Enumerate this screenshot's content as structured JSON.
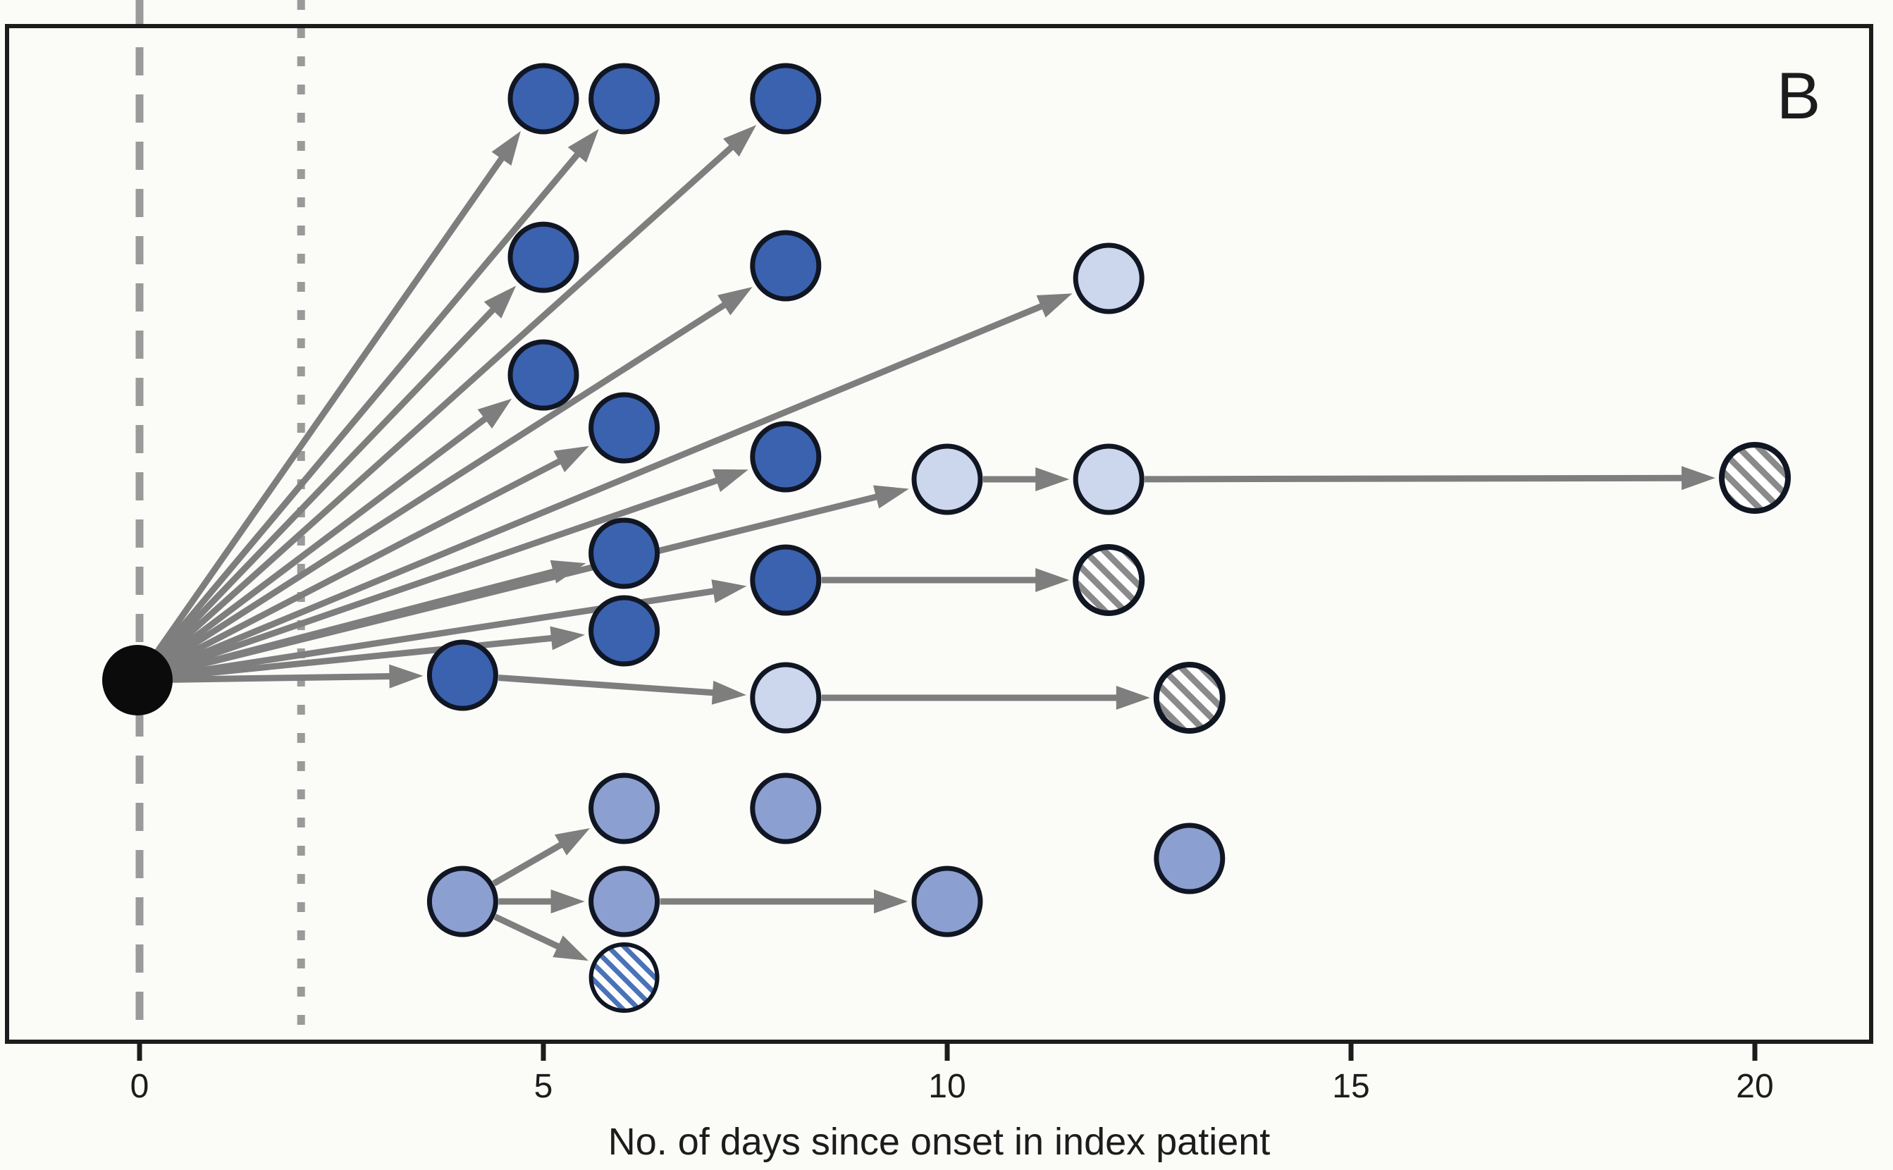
{
  "panel_label": "B",
  "chart_data": {
    "type": "scatter",
    "title": "",
    "xlabel": "No. of days since onset in index patient",
    "x_ticks": [
      0,
      5,
      10,
      15,
      20
    ],
    "x_range_days": [
      -1.65,
      21.45
    ],
    "grid": false,
    "legend_position": "none",
    "reference_lines": [
      {
        "name": "index-onset-line",
        "style": "dashed",
        "x_day": 0
      },
      {
        "name": "day-two-line",
        "style": "dotted",
        "x_day": 2
      }
    ],
    "index_case": {
      "id": "index",
      "day": 0,
      "y": 965
    },
    "nodes": [
      {
        "id": "n1",
        "day": 5,
        "y": 140,
        "type": "dark"
      },
      {
        "id": "n2",
        "day": 6,
        "y": 140,
        "type": "dark"
      },
      {
        "id": "n3",
        "day": 8,
        "y": 140,
        "type": "dark"
      },
      {
        "id": "n4",
        "day": 5,
        "y": 365,
        "type": "dark"
      },
      {
        "id": "n5",
        "day": 8,
        "y": 377,
        "type": "dark"
      },
      {
        "id": "n6",
        "day": 12,
        "y": 395,
        "type": "light"
      },
      {
        "id": "n7",
        "day": 5,
        "y": 532,
        "type": "dark"
      },
      {
        "id": "n8",
        "day": 6,
        "y": 607,
        "type": "dark"
      },
      {
        "id": "n9",
        "day": 8,
        "y": 648,
        "type": "dark"
      },
      {
        "id": "n10",
        "day": 10,
        "y": 680,
        "type": "light"
      },
      {
        "id": "n11",
        "day": 12,
        "y": 680,
        "type": "light"
      },
      {
        "id": "n12",
        "day": 20,
        "y": 678,
        "type": "hatched_gray"
      },
      {
        "id": "n13",
        "day": 6,
        "y": 785,
        "type": "dark"
      },
      {
        "id": "n14",
        "day": 8,
        "y": 823,
        "type": "dark"
      },
      {
        "id": "n15",
        "day": 12,
        "y": 823,
        "type": "hatched_gray"
      },
      {
        "id": "n16",
        "day": 6,
        "y": 895,
        "type": "dark"
      },
      {
        "id": "n17",
        "day": 4,
        "y": 958,
        "type": "dark"
      },
      {
        "id": "n18",
        "day": 8,
        "y": 990,
        "type": "light"
      },
      {
        "id": "n19",
        "day": 13,
        "y": 990,
        "type": "hatched_gray"
      },
      {
        "id": "n20",
        "day": 6,
        "y": 1147,
        "type": "medium"
      },
      {
        "id": "n21",
        "day": 8,
        "y": 1147,
        "type": "medium"
      },
      {
        "id": "n22",
        "day": 4,
        "y": 1279,
        "type": "medium"
      },
      {
        "id": "n23",
        "day": 6,
        "y": 1279,
        "type": "medium"
      },
      {
        "id": "n24",
        "day": 10,
        "y": 1279,
        "type": "medium"
      },
      {
        "id": "n25",
        "day": 13,
        "y": 1218,
        "type": "medium"
      },
      {
        "id": "n26",
        "day": 6,
        "y": 1387,
        "type": "hatched_blue"
      }
    ],
    "edges": [
      [
        "index",
        "n1"
      ],
      [
        "index",
        "n2"
      ],
      [
        "index",
        "n3"
      ],
      [
        "index",
        "n4"
      ],
      [
        "index",
        "n5"
      ],
      [
        "index",
        "n6"
      ],
      [
        "index",
        "n7"
      ],
      [
        "index",
        "n8"
      ],
      [
        "index",
        "n9"
      ],
      [
        "index",
        "n10"
      ],
      [
        "index",
        "n13"
      ],
      [
        "index",
        "n14"
      ],
      [
        "index",
        "n16"
      ],
      [
        "index",
        "n17"
      ],
      [
        "n10",
        "n11"
      ],
      [
        "n11",
        "n12"
      ],
      [
        "n14",
        "n15"
      ],
      [
        "n17",
        "n18"
      ],
      [
        "n18",
        "n19"
      ],
      [
        "n22",
        "n20"
      ],
      [
        "n22",
        "n23"
      ],
      [
        "n22",
        "n26"
      ],
      [
        "n23",
        "n24"
      ]
    ]
  },
  "colors": {
    "background": "#fbfbf8",
    "case_dark_fill": "#3b62af",
    "case_medium_fill": "#8b9fd1",
    "case_light_fill": "#ccd7ee",
    "hatch_gray_stripe": "#8a8a8a",
    "hatch_blue_stripe": "#4a72b8",
    "hatch_background": "#ffffff",
    "node_border": "#111623",
    "index_fill": "#0b0b0b",
    "arrow": "#7e7e7e",
    "axis": "#1c1c1c",
    "reference_line": "#9a9a9a",
    "text": "#1c1c1c"
  }
}
